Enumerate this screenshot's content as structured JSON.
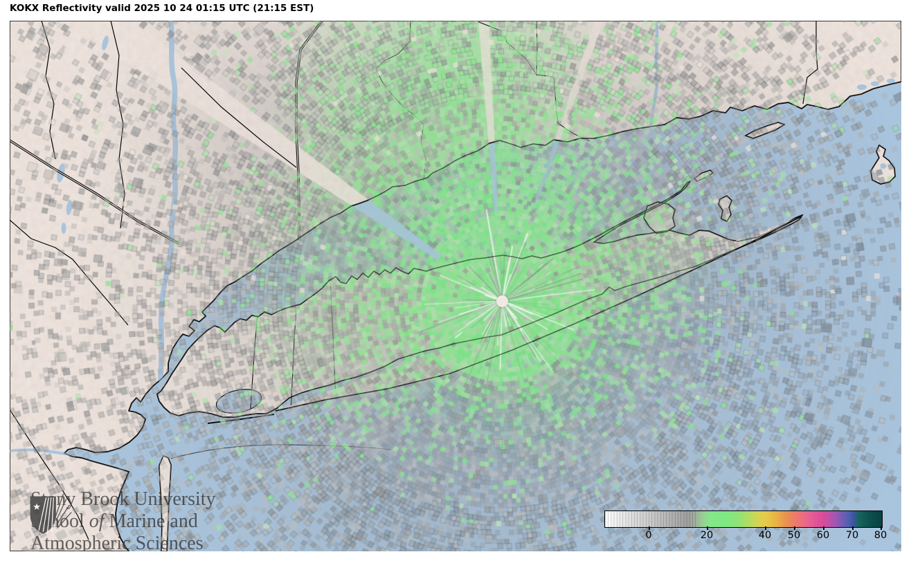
{
  "title": "KOKX Reflectivity valid 2025 10 24 01:15 UTC (21:15 EST)",
  "legend": {
    "ticks": [
      "0",
      "20",
      "40",
      "50",
      "60",
      "70",
      "80"
    ],
    "scale_colors": {
      "minimum": "#ffffff",
      "gray": "#a8a8a8",
      "green": "#7ee883",
      "yellow": "#e5cb49",
      "orange": "#ea9550",
      "pink": "#e86292",
      "magenta": "#d84b9b",
      "purple": "#9a58b4",
      "blue": "#4f60b0",
      "teal": "#0c4a48"
    }
  },
  "watermark": {
    "line1": "Stony Brook University",
    "line2_pre": "School ",
    "line2_italic": "of",
    "line2_post": " Marine and",
    "line3": "Atmospheric Sciences"
  },
  "map": {
    "radar_id": "KOKX",
    "colors": {
      "water": "#a9c4dd",
      "land": "#e9ded7",
      "echo_green": "#8ee595",
      "echo_gray": "#9a9a9a",
      "outline": "#000000",
      "radar_marker": "#f1e8e3"
    }
  }
}
